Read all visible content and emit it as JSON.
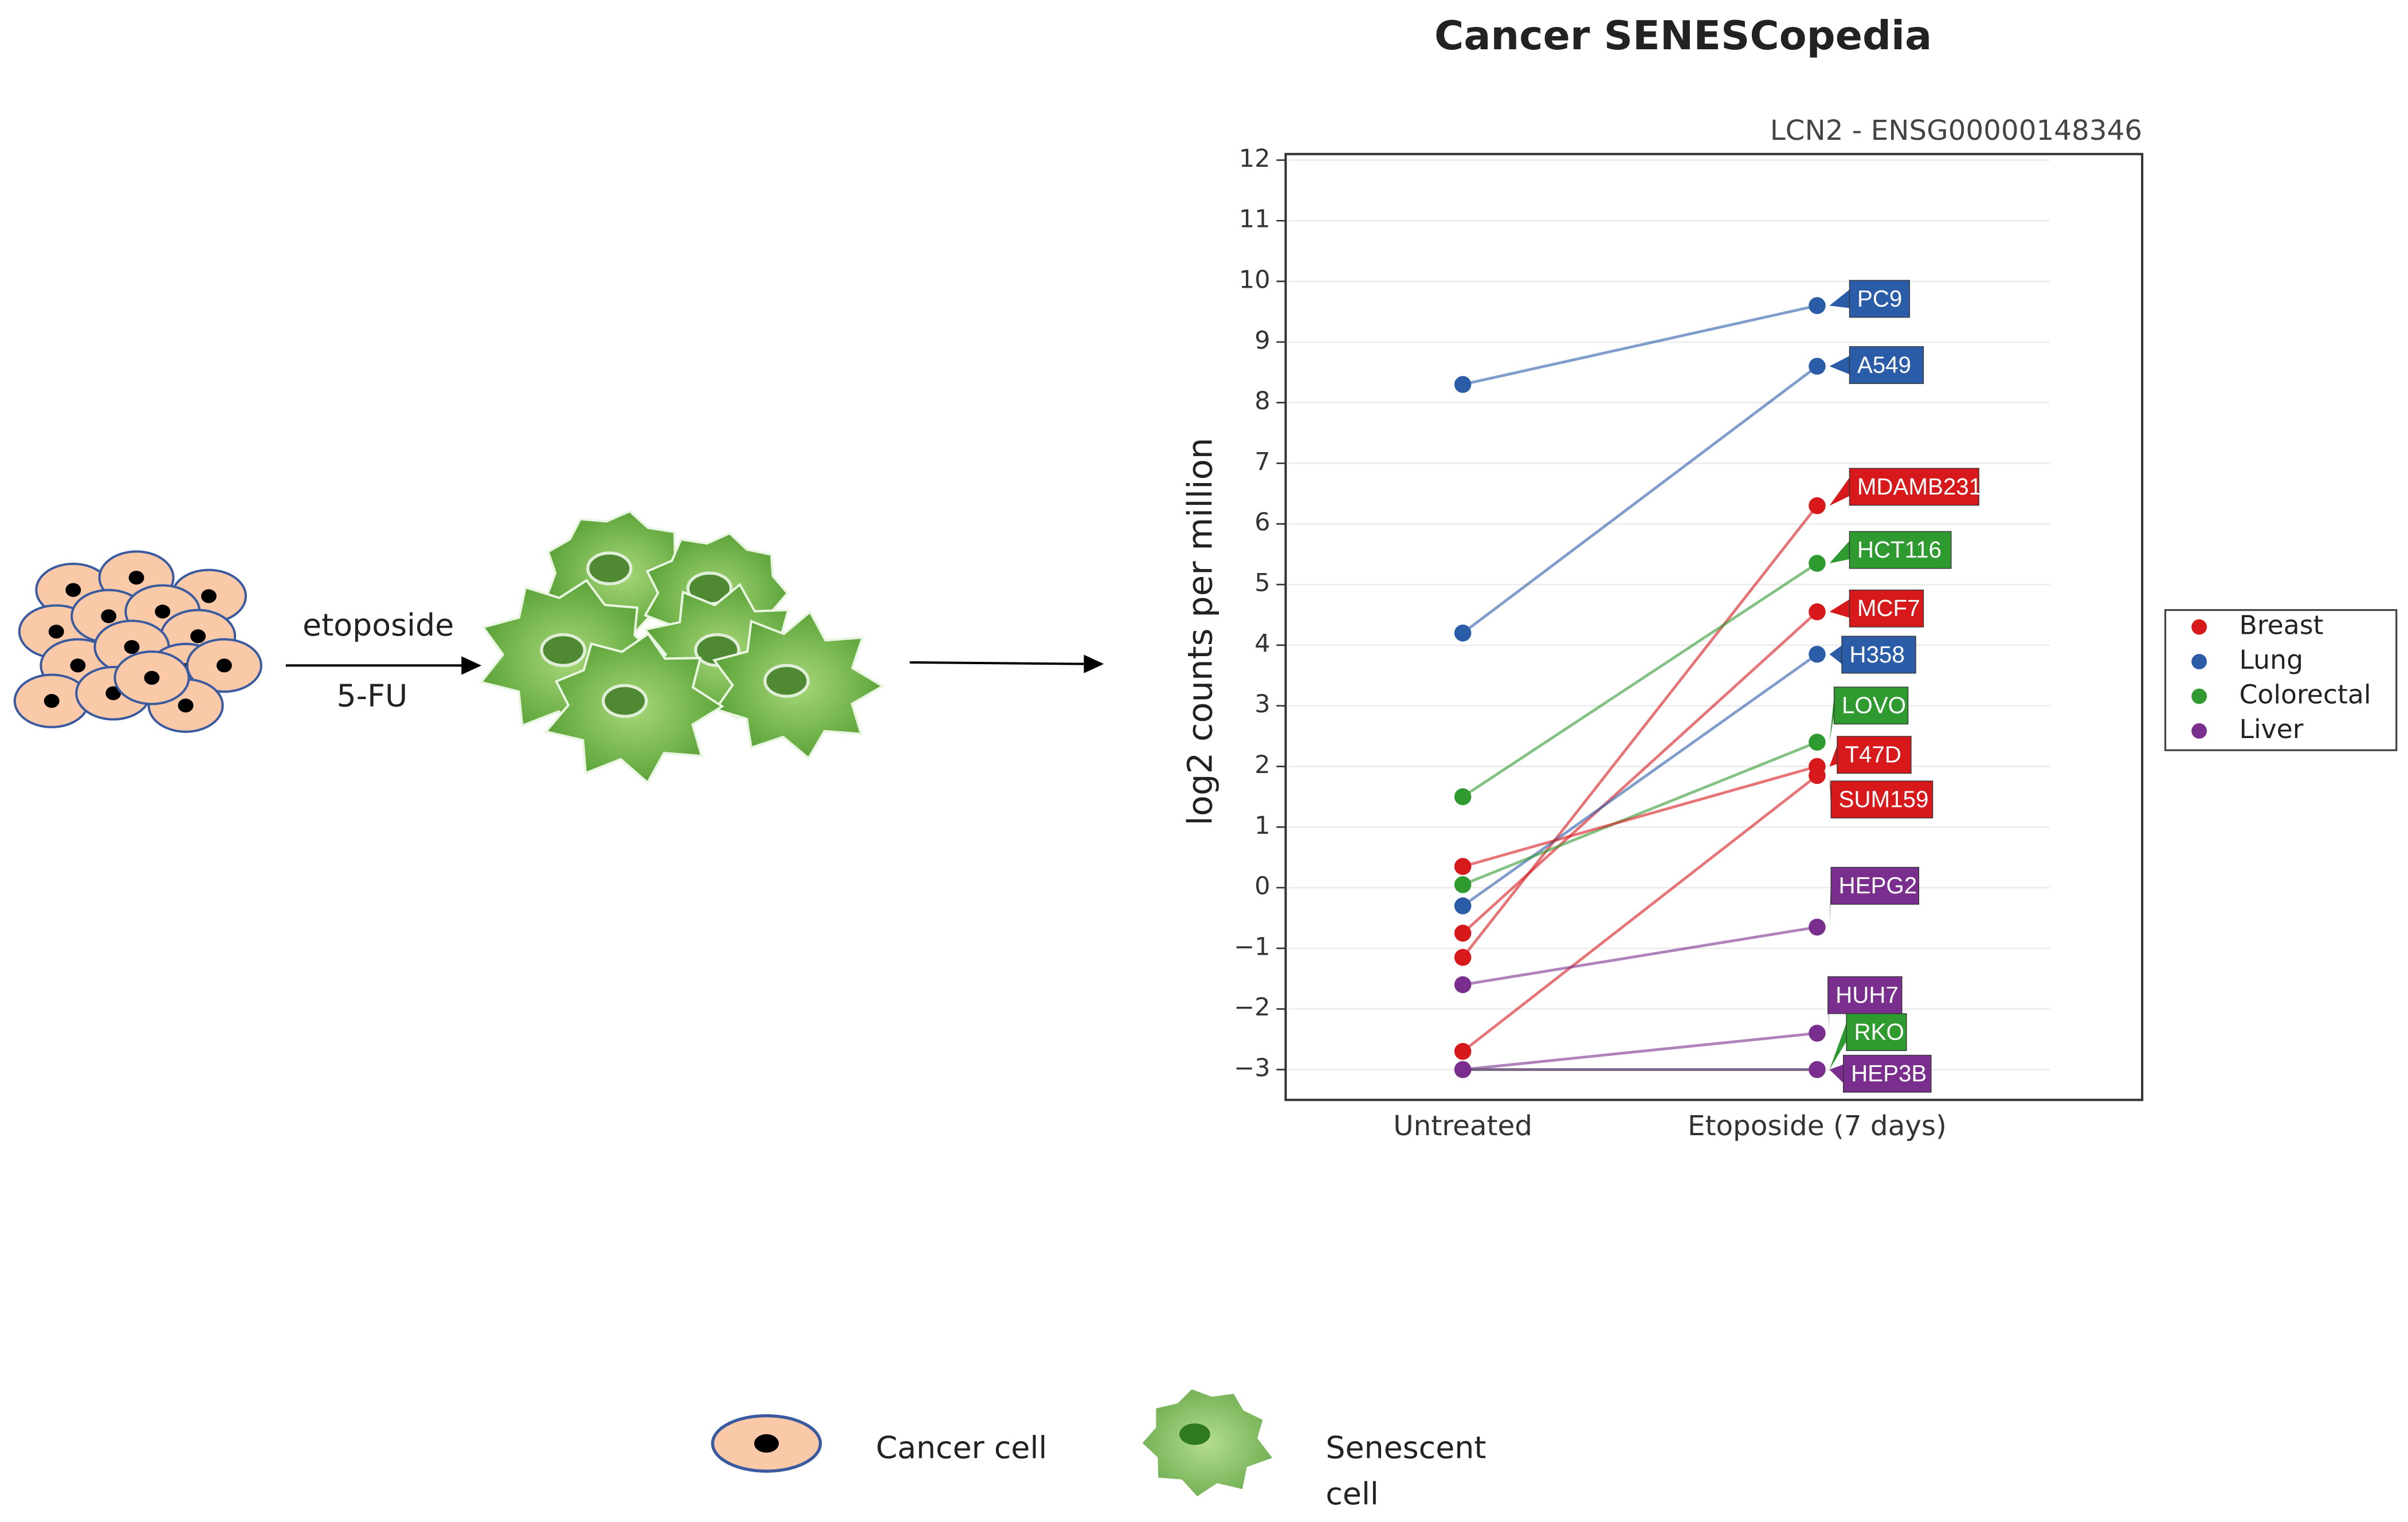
{
  "chart_data": {
    "type": "slope",
    "title": "Cancer SENESCopedia",
    "subtitle": "LCN2 - ENSG00000148346",
    "y_label": "log2 counts per million",
    "categories": [
      "Untreated",
      "Etoposide (7 days)"
    ],
    "ylim": [
      -3.5,
      12.1
    ],
    "yticks": [
      {
        "value": -3,
        "label": "−3"
      },
      {
        "value": -2,
        "label": "−2"
      },
      {
        "value": -1,
        "label": "−1"
      },
      0,
      1,
      2,
      3,
      4,
      5,
      6,
      7,
      8,
      9,
      10,
      11,
      12
    ],
    "grid": true,
    "legend_position": "right",
    "legend": [
      {
        "name": "Breast",
        "color": "#d7191c"
      },
      {
        "name": "Lung",
        "color": "#2b5ca8"
      },
      {
        "name": "Colorectal",
        "color": "#2f9a2f"
      },
      {
        "name": "Liver",
        "color": "#7a2f8f"
      }
    ],
    "series": [
      {
        "name": "PC9",
        "color": "#2b5ca8",
        "values": [
          8.3,
          9.6
        ]
      },
      {
        "name": "A549",
        "color": "#2b5ca8",
        "values": [
          4.2,
          8.6
        ]
      },
      {
        "name": "MDAMB231",
        "color": "#d7191c",
        "values": [
          -1.15,
          6.3
        ]
      },
      {
        "name": "HCT116",
        "color": "#2f9a2f",
        "values": [
          1.5,
          5.35
        ]
      },
      {
        "name": "MCF7",
        "color": "#d7191c",
        "values": [
          -0.75,
          4.55
        ]
      },
      {
        "name": "H358",
        "color": "#2b5ca8",
        "values": [
          -0.3,
          3.85
        ]
      },
      {
        "name": "LOVO",
        "color": "#2f9a2f",
        "values": [
          0.05,
          2.4
        ]
      },
      {
        "name": "T47D",
        "color": "#d7191c",
        "values": [
          0.35,
          2.0
        ]
      },
      {
        "name": "SUM159",
        "color": "#d7191c",
        "values": [
          -2.7,
          1.85
        ]
      },
      {
        "name": "HEPG2",
        "color": "#7a2f8f",
        "values": [
          -1.6,
          -0.65
        ]
      },
      {
        "name": "HUH7",
        "color": "#7a2f8f",
        "values": [
          -3,
          -2.4
        ]
      },
      {
        "name": "RKO",
        "color": "#2f9a2f",
        "values": [
          -3,
          -3
        ]
      },
      {
        "name": "HEP3B",
        "color": "#7a2f8f",
        "values": [
          -3,
          -3
        ]
      }
    ]
  },
  "schematic": {
    "treatments": [
      "etoposide",
      "5-FU"
    ],
    "key": {
      "cancer_cell": "Cancer cell",
      "senescent_cell": [
        "Senescent",
        "cell"
      ]
    }
  }
}
